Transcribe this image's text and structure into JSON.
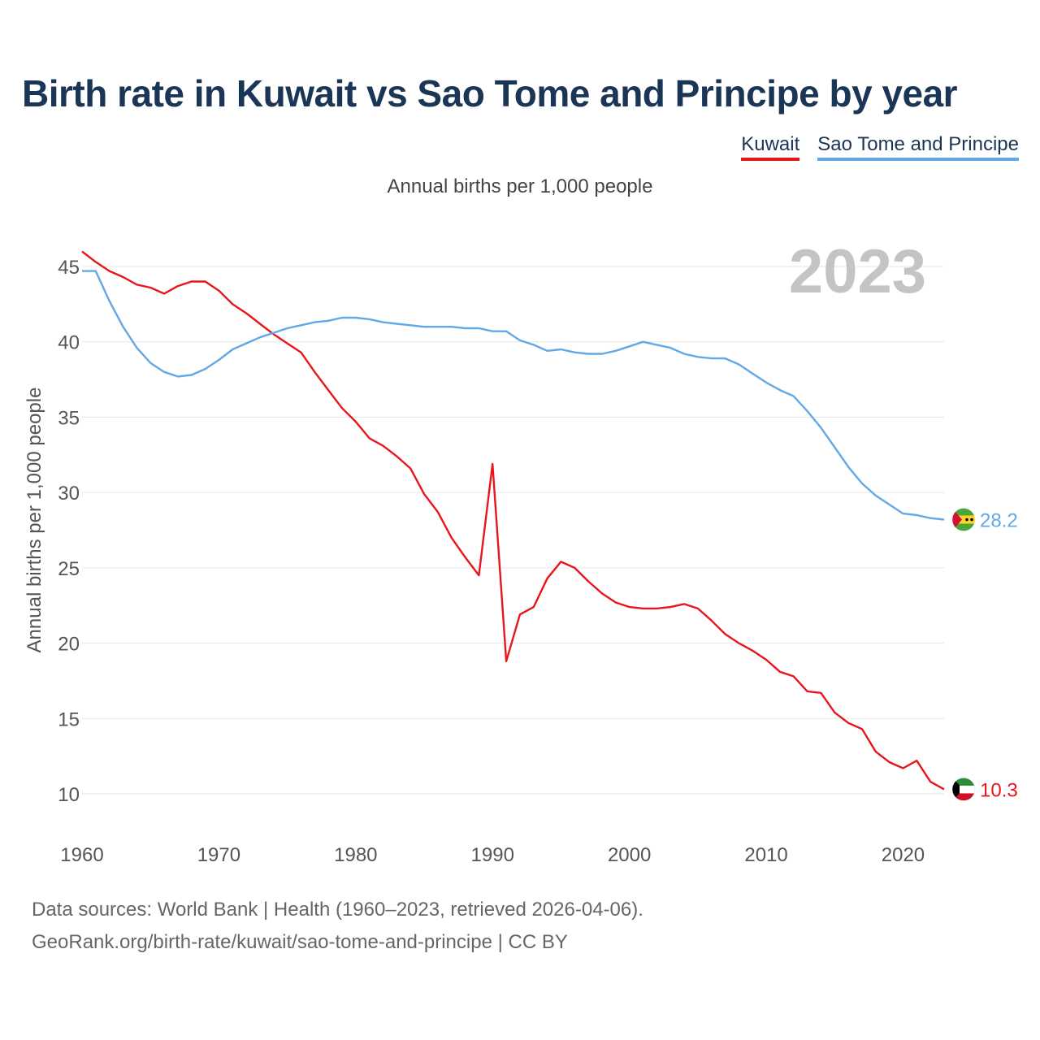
{
  "title": "Birth rate in Kuwait vs Sao Tome and Principe by year",
  "subtitle": "Annual births per 1,000 people",
  "legend": [
    {
      "name": "Kuwait",
      "color": "#e8161b"
    },
    {
      "name": "Sao Tome and Principe",
      "color": "#62a8e6"
    }
  ],
  "year_watermark": "2023",
  "footer": {
    "line1": "Data sources: World Bank | Health (1960–2023, retrieved 2026-04-06).",
    "line2": "GeoRank.org/birth-rate/kuwait/sao-tome-and-principe | CC BY"
  },
  "chart_data": {
    "type": "line",
    "title": "Birth rate in Kuwait vs Sao Tome and Principe by year",
    "xlabel": "",
    "ylabel": "Annual births per 1,000 people",
    "xlim": [
      1960,
      2023
    ],
    "ylim": [
      8,
      47
    ],
    "x_ticks": [
      1960,
      1970,
      1980,
      1990,
      2000,
      2010,
      2020
    ],
    "y_ticks": [
      10,
      15,
      20,
      25,
      30,
      35,
      40,
      45
    ],
    "grid": true,
    "legend_position": "top-right",
    "x": [
      1960,
      1961,
      1962,
      1963,
      1964,
      1965,
      1966,
      1967,
      1968,
      1969,
      1970,
      1971,
      1972,
      1973,
      1974,
      1975,
      1976,
      1977,
      1978,
      1979,
      1980,
      1981,
      1982,
      1983,
      1984,
      1985,
      1986,
      1987,
      1988,
      1989,
      1990,
      1991,
      1992,
      1993,
      1994,
      1995,
      1996,
      1997,
      1998,
      1999,
      2000,
      2001,
      2002,
      2003,
      2004,
      2005,
      2006,
      2007,
      2008,
      2009,
      2010,
      2011,
      2012,
      2013,
      2014,
      2015,
      2016,
      2017,
      2018,
      2019,
      2020,
      2021,
      2022,
      2023
    ],
    "series": [
      {
        "name": "Kuwait",
        "color": "#e8161b",
        "end_label": "10.3",
        "values": [
          46.0,
          45.3,
          44.7,
          44.3,
          43.8,
          43.6,
          43.2,
          43.7,
          44.0,
          44.0,
          43.4,
          42.5,
          41.9,
          41.2,
          40.5,
          39.9,
          39.3,
          38.0,
          36.8,
          35.6,
          34.7,
          33.6,
          33.1,
          32.4,
          31.6,
          29.9,
          28.7,
          27.0,
          25.7,
          24.5,
          31.9,
          18.8,
          21.9,
          22.4,
          24.3,
          25.4,
          25.0,
          24.1,
          23.3,
          22.7,
          22.4,
          22.3,
          22.3,
          22.4,
          22.6,
          22.3,
          21.5,
          20.6,
          20.0,
          19.5,
          18.9,
          18.1,
          17.8,
          16.8,
          16.7,
          15.4,
          14.7,
          14.3,
          12.8,
          12.1,
          11.7,
          12.2,
          10.8,
          10.3
        ]
      },
      {
        "name": "Sao Tome and Principe",
        "color": "#62a8e6",
        "end_label": "28.2",
        "values": [
          44.7,
          44.7,
          42.7,
          41.0,
          39.6,
          38.6,
          38.0,
          37.7,
          37.8,
          38.2,
          38.8,
          39.5,
          39.9,
          40.3,
          40.6,
          40.9,
          41.1,
          41.3,
          41.4,
          41.6,
          41.6,
          41.5,
          41.3,
          41.2,
          41.1,
          41.0,
          41.0,
          41.0,
          40.9,
          40.9,
          40.7,
          40.7,
          40.1,
          39.8,
          39.4,
          39.5,
          39.3,
          39.2,
          39.2,
          39.4,
          39.7,
          40.0,
          39.8,
          39.6,
          39.2,
          39.0,
          38.9,
          38.9,
          38.5,
          37.9,
          37.3,
          36.8,
          36.4,
          35.4,
          34.3,
          33.0,
          31.7,
          30.6,
          29.8,
          29.2,
          28.6,
          28.5,
          28.3,
          28.2
        ]
      }
    ]
  }
}
